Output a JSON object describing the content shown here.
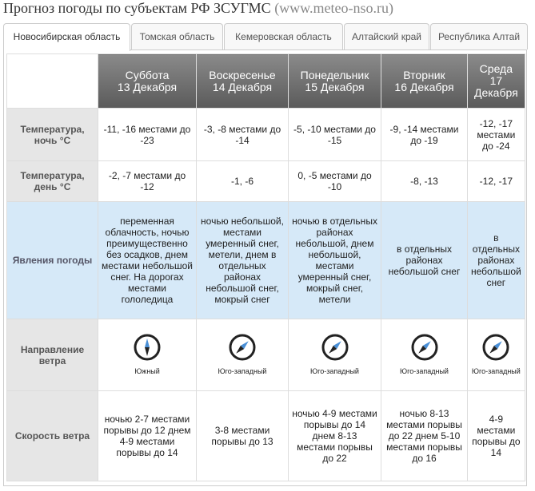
{
  "header": {
    "title": "Прогноз погоды по субъектам РФ ЗСУГМС",
    "site": "(www.meteo-nso.ru)"
  },
  "tabs": [
    "Новосибирская область",
    "Томская область",
    "Кемеровская область",
    "Алтайский край",
    "Республика Алтай"
  ],
  "table": {
    "columns": [
      {
        "day": "Суббота",
        "date": "13 Декабря"
      },
      {
        "day": "Воскресенье",
        "date": "14 Декабря"
      },
      {
        "day": "Понедельник",
        "date": "15 Декабря"
      },
      {
        "day": "Вторник",
        "date": "16 Декабря"
      },
      {
        "day": "Среда",
        "date": "17 Декабря"
      }
    ],
    "rows": [
      {
        "label": "Температура, ночь °C",
        "cells": [
          "-11, -16 местами до -23",
          "-3, -8 местами до -14",
          "-5, -10 местами до -15",
          "-9, -14 местами до -19",
          "-12, -17 местами до -24"
        ]
      },
      {
        "label": "Температура, день °C",
        "cells": [
          "-2, -7 местами до -12",
          "-1, -6",
          "0, -5 местами до -10",
          "-8, -13",
          "-12, -17"
        ]
      },
      {
        "label": "Явления погоды",
        "cells": [
          "переменная облачность, ночью преимущественно без осадков, днем местами небольшой снег. На дорогах местами гололедица",
          "ночью небольшой, местами умеренный снег, метели, днем в отдельных районах небольшой снег, мокрый снег",
          "ночью в отдельных районах небольшой, днем небольшой, местами умеренный снег, мокрый снег, метели",
          "в отдельных районах небольшой снег",
          "в отдельных районах небольшой снег"
        ]
      },
      {
        "label": "Направление ветра",
        "cells": [
          "Южный",
          "Юго-западный",
          "Юго-западный",
          "Юго-западный",
          "Юго-западный"
        ]
      },
      {
        "label": "Скорость ветра",
        "cells": [
          "ночью 2-7 местами порывы до 12 днем 4-9 местами порывы до 14",
          "3-8 местами порывы до 13",
          "ночью 4-9 местами порывы до 14 днем 8-13 местами порывы до 22",
          "ночью 8-13 местами порывы до 22 днем 5-10 местами порывы до 16",
          "4-9 местами порывы до 14"
        ]
      }
    ]
  }
}
